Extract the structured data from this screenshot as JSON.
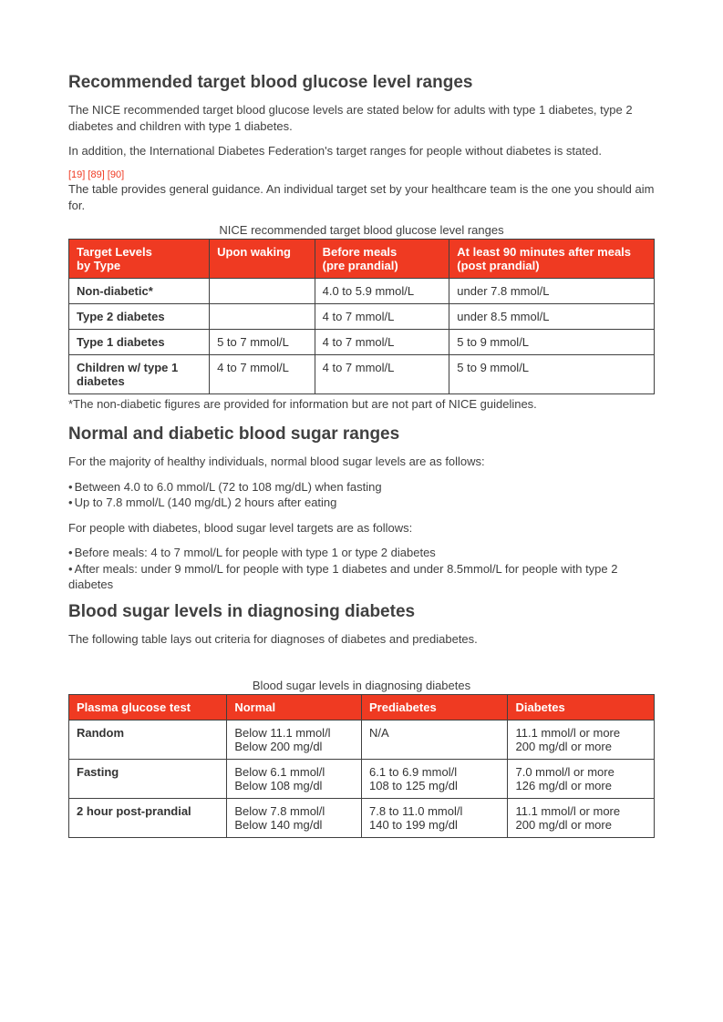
{
  "section1": {
    "heading": "Recommended target blood glucose level ranges",
    "para1": "The NICE recommended target blood glucose levels are stated below for adults with type 1 diabetes, type 2 diabetes and children with type 1 diabetes.",
    "para2": "In addition, the International Diabetes Federation's target ranges for people without diabetes is stated.",
    "refs": "[19] [89] [90]",
    "para3": "The table provides general guidance. An individual target set by your healthcare team is the one you should aim for.",
    "caption": "NICE recommended target blood glucose level ranges",
    "table": {
      "headers": [
        "Target Levels\nby Type",
        "Upon waking",
        "Before meals\n(pre prandial)",
        "At least 90 minutes after meals\n(post prandial)"
      ],
      "rows": [
        [
          "Non-diabetic*",
          "",
          "4.0 to 5.9 mmol/L",
          "under 7.8 mmol/L"
        ],
        [
          "Type 2 diabetes",
          "",
          "4 to 7 mmol/L",
          "under 8.5 mmol/L"
        ],
        [
          "Type 1 diabetes",
          "5 to 7 mmol/L",
          "4 to 7 mmol/L",
          "5 to 9 mmol/L"
        ],
        [
          "Children w/ type 1 diabetes",
          "4 to 7 mmol/L",
          "4 to 7 mmol/L",
          "5 to 9 mmol/L"
        ]
      ],
      "col_widths": [
        "24%",
        "18%",
        "23%",
        "35%"
      ],
      "header_bg": "#ef3a22",
      "header_color": "#ffffff",
      "border_color": "#404040"
    },
    "footnote": "*The non-diabetic figures are provided for information but are not part of NICE guidelines."
  },
  "section2": {
    "heading": "Normal and diabetic blood sugar ranges",
    "para1": "For the majority of healthy individuals, normal blood sugar levels are as follows:",
    "bullets1": [
      "Between 4.0 to 6.0 mmol/L (72 to 108 mg/dL) when fasting",
      "Up to 7.8 mmol/L (140 mg/dL) 2 hours after eating"
    ],
    "para2": "For people with diabetes, blood sugar level targets are as follows:",
    "bullets2": [
      "Before meals: 4 to 7 mmol/L for people with type 1 or type 2 diabetes",
      "After meals: under 9 mmol/L for people with type 1 diabetes and under 8.5mmol/L for people with type 2 diabetes"
    ]
  },
  "section3": {
    "heading": "Blood sugar levels in diagnosing diabetes",
    "para1": "The following table lays out criteria for diagnoses of diabetes and prediabetes.",
    "caption": "Blood sugar levels in diagnosing diabetes",
    "table": {
      "headers": [
        "Plasma glucose test",
        "Normal",
        "Prediabetes",
        "Diabetes"
      ],
      "rows": [
        [
          "Random",
          "Below 11.1 mmol/l\nBelow 200 mg/dl",
          "N/A",
          "11.1 mmol/l or more\n200 mg/dl or more"
        ],
        [
          "Fasting",
          "Below 6.1 mmol/l\nBelow 108 mg/dl",
          "6.1 to 6.9 mmol/l\n108 to 125 mg/dl",
          "7.0 mmol/l or more\n126 mg/dl or more"
        ],
        [
          "2 hour post-prandial",
          "Below 7.8 mmol/l\nBelow 140 mg/dl",
          "7.8 to 11.0 mmol/l\n140 to 199 mg/dl",
          "11.1 mmol/l or more\n200 mg/dl or more"
        ]
      ],
      "col_widths": [
        "27%",
        "23%",
        "25%",
        "25%"
      ],
      "header_bg": "#ef3a22",
      "header_color": "#ffffff",
      "border_color": "#404040"
    }
  }
}
